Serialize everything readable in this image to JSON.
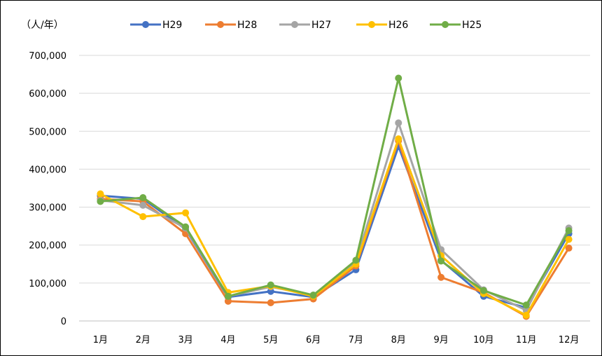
{
  "chart_data": {
    "type": "line",
    "title": "",
    "unit_label": "（人/年）",
    "xlabel": "",
    "ylabel": "",
    "categories": [
      "1月",
      "2月",
      "3月",
      "4月",
      "5月",
      "6月",
      "7月",
      "8月",
      "9月",
      "10月",
      "11月",
      "12月"
    ],
    "ylim": [
      0,
      700000
    ],
    "yticks": [
      0,
      100000,
      200000,
      300000,
      400000,
      500000,
      600000,
      700000
    ],
    "ytick_labels": [
      "0",
      "100,000",
      "200,000",
      "300,000",
      "400,000",
      "500,000",
      "600,000",
      "700,000"
    ],
    "grid": true,
    "legend_position": "top",
    "series": [
      {
        "name": "H29",
        "color": "#4472C4",
        "values": [
          330000,
          322000,
          242000,
          63000,
          78000,
          63000,
          135000,
          460000,
          160000,
          65000,
          35000,
          230000
        ]
      },
      {
        "name": "H28",
        "color": "#ED7D31",
        "values": [
          322000,
          315000,
          230000,
          52000,
          48000,
          58000,
          145000,
          475000,
          115000,
          75000,
          12000,
          192000
        ]
      },
      {
        "name": "H27",
        "color": "#A5A5A5",
        "values": [
          318000,
          305000,
          245000,
          65000,
          90000,
          68000,
          155000,
          522000,
          188000,
          82000,
          28000,
          245000
        ]
      },
      {
        "name": "H26",
        "color": "#FFC000",
        "values": [
          335000,
          275000,
          285000,
          75000,
          92000,
          65000,
          150000,
          480000,
          172000,
          72000,
          15000,
          215000
        ]
      },
      {
        "name": "H25",
        "color": "#70AD47",
        "values": [
          315000,
          325000,
          248000,
          65000,
          95000,
          68000,
          160000,
          640000,
          158000,
          80000,
          42000,
          238000
        ]
      }
    ]
  }
}
